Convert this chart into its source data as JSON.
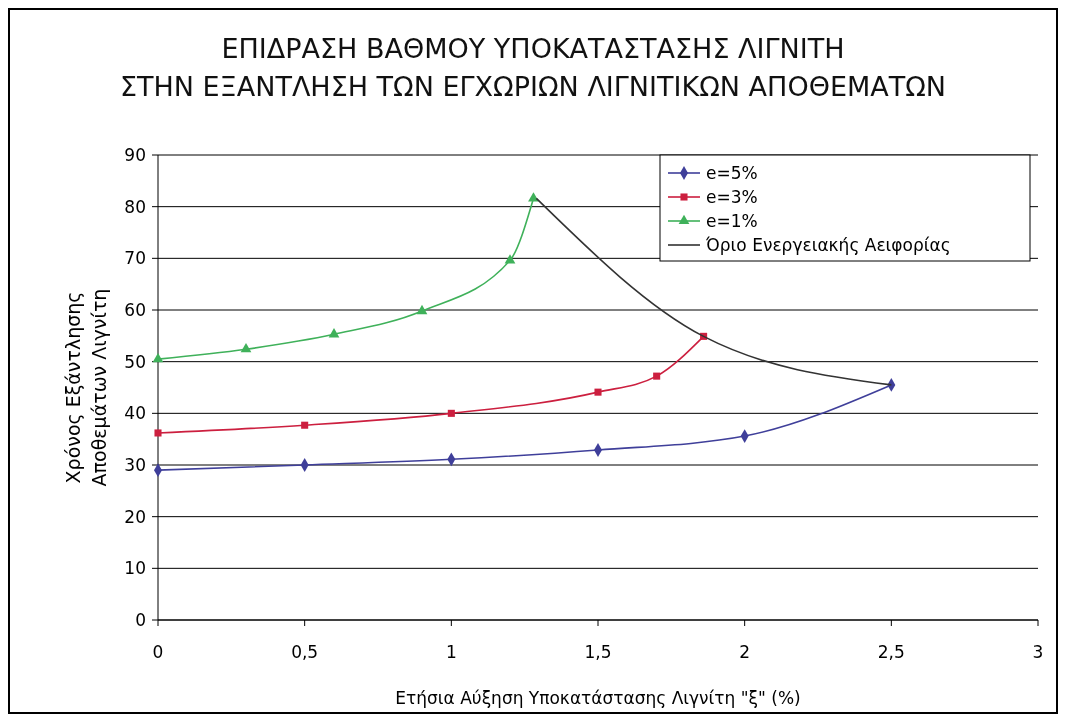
{
  "chart_data": {
    "type": "line",
    "title": "ΕΠΙΔΡΑΣΗ ΒΑΘΜΟΥ ΥΠΟΚΑΤΑΣΤΑΣΗΣ ΛΙΓΝΙΤΗ\nΣΤΗΝ ΕΞΑΝΤΛΗΣΗ ΤΩΝ ΕΓΧΩΡΙΩΝ ΛΙΓΝΙΤΙΚΩΝ ΑΠΟΘΕΜΑΤΩΝ",
    "xlabel": "Ετήσια Αύξηση Υποκατάστασης Λιγνίτη \"ξ\" (%)",
    "ylabel": "Χρόνος Εξάντλησης\nΑποθεμάτων Λιγνίτη",
    "xlim": [
      0,
      3
    ],
    "xticks": [
      0,
      {
        "value": 0.5,
        "label": "0,5"
      },
      1,
      {
        "value": 1.5,
        "label": "1,5"
      },
      2,
      {
        "value": 2.5,
        "label": "2,5"
      },
      3
    ],
    "ylim": [
      0,
      90
    ],
    "yticks": [
      0,
      10,
      20,
      30,
      40,
      50,
      60,
      70,
      80,
      90
    ],
    "grid": "y",
    "legend": "top right",
    "series": [
      {
        "name": "e=5%",
        "color": "#3f3f9a",
        "marker": "diamond",
        "x": [
          0,
          0.5,
          1,
          1.5,
          2,
          2.5
        ],
        "values": [
          29,
          30,
          31.1,
          32.9,
          35.6,
          45.5
        ]
      },
      {
        "name": "e=3%",
        "color": "#cc1f3f",
        "marker": "square",
        "x": [
          0,
          0.5,
          1,
          1.5,
          1.7,
          1.86
        ],
        "values": [
          36.2,
          37.7,
          40,
          44.1,
          47.2,
          54.9
        ]
      },
      {
        "name": "e=1%",
        "color": "#3fb15a",
        "marker": "triangle",
        "x": [
          0,
          0.3,
          0.6,
          0.9,
          1.2,
          1.28
        ],
        "values": [
          50.5,
          52.4,
          55.3,
          59.8,
          69.6,
          81.6
        ]
      },
      {
        "name": "Όριο Ενεργειακής Αειφορίας",
        "color": "#333333",
        "marker": "none",
        "x": [
          1.29,
          1.86,
          2.5
        ],
        "values": [
          81.6,
          54.9,
          45.5
        ]
      }
    ]
  }
}
